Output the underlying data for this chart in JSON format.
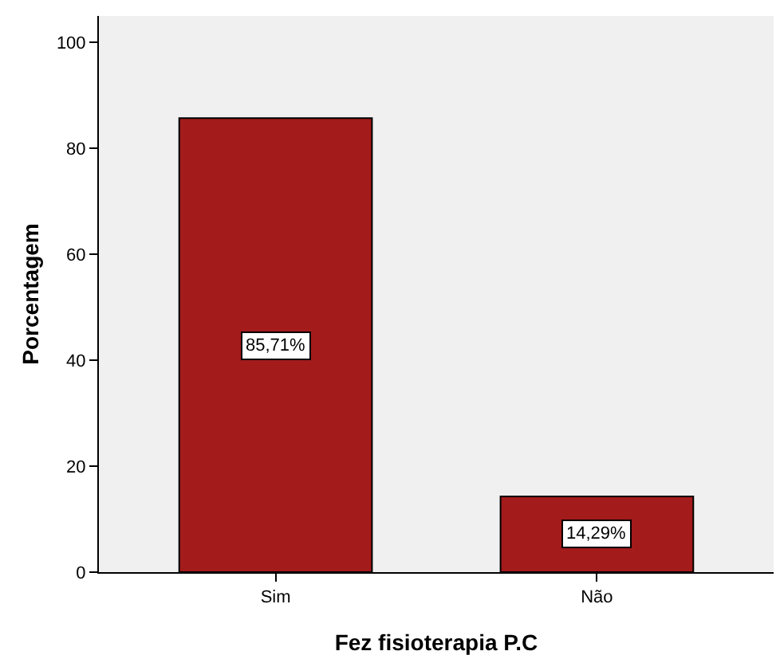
{
  "chart_data": {
    "type": "bar",
    "xlabel": "Fez fisioterapia P.C",
    "ylabel": "Porcentagem",
    "categories": [
      "Sim",
      "Não"
    ],
    "values": [
      85.71,
      14.29
    ],
    "value_labels": [
      "85,71%",
      "14,29%"
    ],
    "color": "#a31b1b",
    "ylim": [
      0,
      105
    ],
    "yticks": [
      0,
      20,
      40,
      60,
      80,
      100
    ],
    "grid": false,
    "legend": false
  }
}
